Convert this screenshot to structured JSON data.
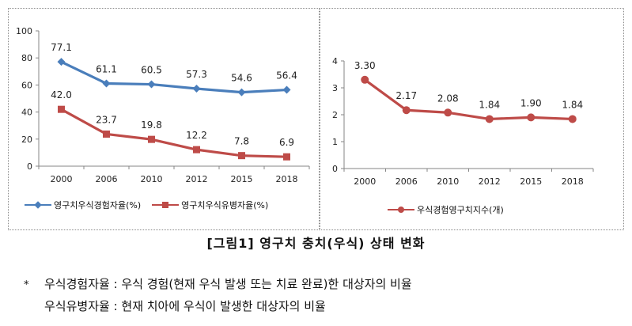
{
  "chart_data": [
    {
      "type": "line",
      "categories": [
        "2000",
        "2006",
        "2010",
        "2012",
        "2015",
        "2018"
      ],
      "ylim": [
        0,
        100
      ],
      "yticks": [
        0,
        20,
        40,
        60,
        80,
        100
      ],
      "grid": false,
      "legend_placement": "bottom",
      "series": [
        {
          "name": "영구치우식경험자율(%)",
          "values": [
            77.1,
            61.1,
            60.5,
            57.3,
            54.6,
            56.4
          ],
          "color": "#4A7EBB",
          "marker": "diamond"
        },
        {
          "name": "영구치우식유병자율(%)",
          "values": [
            42.0,
            23.7,
            19.8,
            12.2,
            7.8,
            6.9
          ],
          "color": "#BE4B48",
          "marker": "square"
        }
      ],
      "labels": [
        [
          "77.1",
          "61.1",
          "60.5",
          "57.3",
          "54.6",
          "56.4"
        ],
        [
          "42.0",
          "23.7",
          "19.8",
          "12.2",
          "7.8",
          "6.9"
        ]
      ]
    },
    {
      "type": "line",
      "categories": [
        "2000",
        "2006",
        "2010",
        "2012",
        "2015",
        "2018"
      ],
      "ylim": [
        0,
        4
      ],
      "yticks": [
        0,
        1,
        2,
        3,
        4
      ],
      "grid": false,
      "legend_placement": "bottom",
      "series": [
        {
          "name": "우식경험영구치지수(개)",
          "values": [
            3.3,
            2.17,
            2.08,
            1.84,
            1.9,
            1.84
          ],
          "color": "#BE4B48",
          "marker": "circle"
        }
      ],
      "labels": [
        [
          "3.30",
          "2.17",
          "2.08",
          "1.84",
          "1.90",
          "1.84"
        ]
      ]
    }
  ],
  "caption": "[그림1] 영구치 충치(우식) 상태 변화",
  "notes": {
    "mark": "*",
    "line1": "우식경험자율 : 우식 경험(현재 우식 발생 또는 치료 완료)한 대상자의 비율",
    "line2": "우식유병자율 : 현재 치아에 우식이 발생한 대상자의 비율"
  }
}
